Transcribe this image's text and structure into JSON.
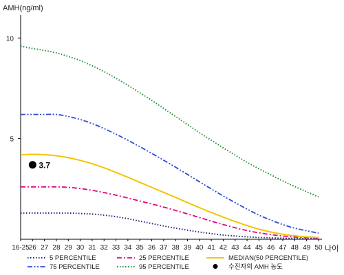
{
  "chart_data": {
    "type": "line",
    "ylabel": "AMH(ng/ml)",
    "xlabel": "나이",
    "x": [
      "16-25",
      "26",
      "27",
      "28",
      "29",
      "30",
      "31",
      "32",
      "33",
      "34",
      "35",
      "36",
      "37",
      "38",
      "39",
      "40",
      "41",
      "42",
      "43",
      "44",
      "45",
      "46",
      "47",
      "48",
      "49",
      "50"
    ],
    "y_ticks": [
      "5",
      "10"
    ],
    "ylim": [
      0,
      11
    ],
    "series": [
      {
        "name": "5 PERCENTILE",
        "color": "#1a237e",
        "dash": "dotted",
        "values": [
          1.3,
          1.3,
          1.3,
          1.3,
          1.3,
          1.28,
          1.25,
          1.2,
          1.12,
          1.02,
          0.9,
          0.78,
          0.66,
          0.55,
          0.45,
          0.36,
          0.28,
          0.21,
          0.16,
          0.12,
          0.09,
          0.07,
          0.05,
          0.04,
          0.03,
          0.03
        ]
      },
      {
        "name": "25 PERCENTILE",
        "color": "#e6007e",
        "dash": "dashdot",
        "values": [
          2.6,
          2.6,
          2.6,
          2.6,
          2.58,
          2.52,
          2.43,
          2.32,
          2.19,
          2.05,
          1.9,
          1.75,
          1.6,
          1.43,
          1.26,
          1.08,
          0.9,
          0.73,
          0.57,
          0.43,
          0.32,
          0.23,
          0.16,
          0.11,
          0.08,
          0.06
        ]
      },
      {
        "name": "MEDIAN(50 PERCENTILE)",
        "color": "#f5c400",
        "dash": "solid",
        "values": [
          4.2,
          4.22,
          4.2,
          4.15,
          4.05,
          3.92,
          3.75,
          3.55,
          3.32,
          3.08,
          2.83,
          2.58,
          2.33,
          2.08,
          1.82,
          1.57,
          1.33,
          1.1,
          0.88,
          0.68,
          0.5,
          0.36,
          0.25,
          0.17,
          0.12,
          0.09
        ]
      },
      {
        "name": "75 PERCENTILE",
        "color": "#2f4bd6",
        "dash": "dashdotdot",
        "values": [
          6.2,
          6.2,
          6.2,
          6.2,
          6.1,
          5.95,
          5.75,
          5.5,
          5.22,
          4.92,
          4.6,
          4.27,
          3.93,
          3.58,
          3.22,
          2.86,
          2.5,
          2.15,
          1.82,
          1.5,
          1.2,
          0.95,
          0.73,
          0.55,
          0.42,
          0.3
        ]
      },
      {
        "name": "95 PERCENTILE",
        "color": "#1e8b3a",
        "dash": "dotted",
        "values": [
          9.6,
          9.48,
          9.38,
          9.26,
          9.08,
          8.88,
          8.62,
          8.33,
          8.0,
          7.65,
          7.28,
          6.9,
          6.5,
          6.1,
          5.7,
          5.3,
          4.92,
          4.54,
          4.18,
          3.82,
          3.5,
          3.2,
          2.9,
          2.62,
          2.36,
          2.1
        ]
      }
    ],
    "marker": {
      "name": "수진자의 AMH 농도",
      "x": "26",
      "y": 3.7,
      "label": "3.7",
      "color": "#000000"
    },
    "legend": {
      "placement": "bottom",
      "rows": [
        [
          "5 PERCENTILE",
          "25 PERCENTILE",
          "MEDIAN(50 PERCENTILE)"
        ],
        [
          "75 PERCENTILE",
          "95 PERCENTILE",
          "수진자의 AMH 농도"
        ]
      ]
    },
    "grid": false
  }
}
